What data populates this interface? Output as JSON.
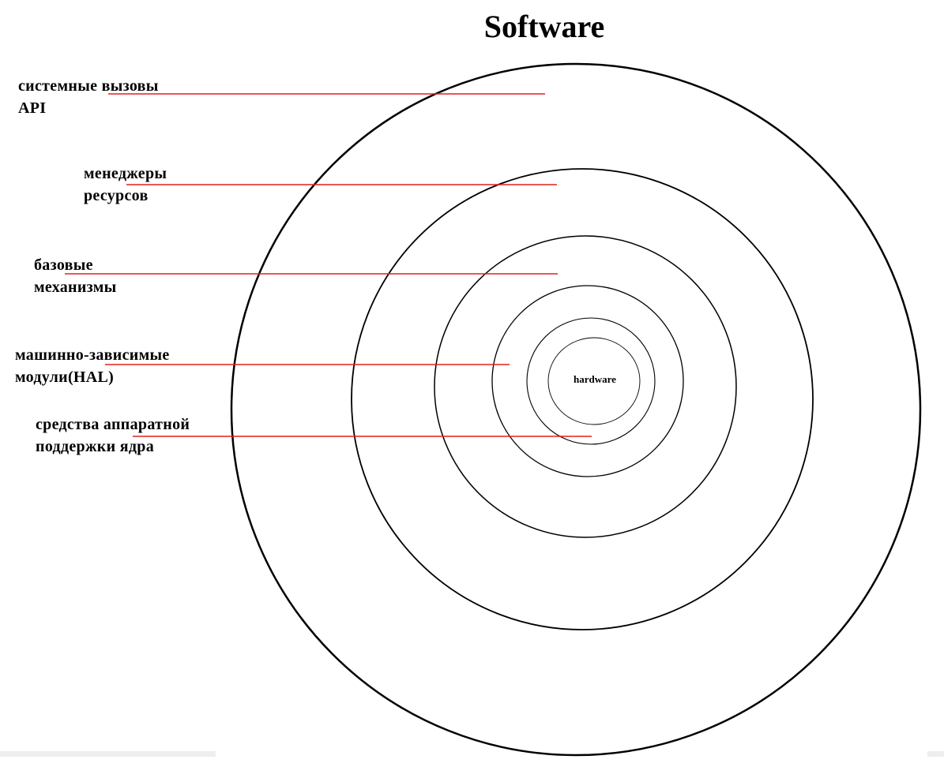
{
  "title": "Software",
  "center_label": "hardware",
  "colors": {
    "ring": "#000000",
    "leader": "#e0201b",
    "background": "#ffffff"
  },
  "layers": [
    {
      "id": "api",
      "lines": [
        "системные вызовы",
        "API"
      ]
    },
    {
      "id": "resource-managers",
      "lines": [
        "менеджеры",
        "ресурсов"
      ]
    },
    {
      "id": "base-mechanisms",
      "lines": [
        "базовые",
        "механизмы"
      ]
    },
    {
      "id": "hal",
      "lines": [
        "машинно-зависимые",
        "модули(HAL)"
      ]
    },
    {
      "id": "hw-support",
      "lines": [
        "средства аппаратной",
        "поддержки ядра"
      ]
    }
  ]
}
